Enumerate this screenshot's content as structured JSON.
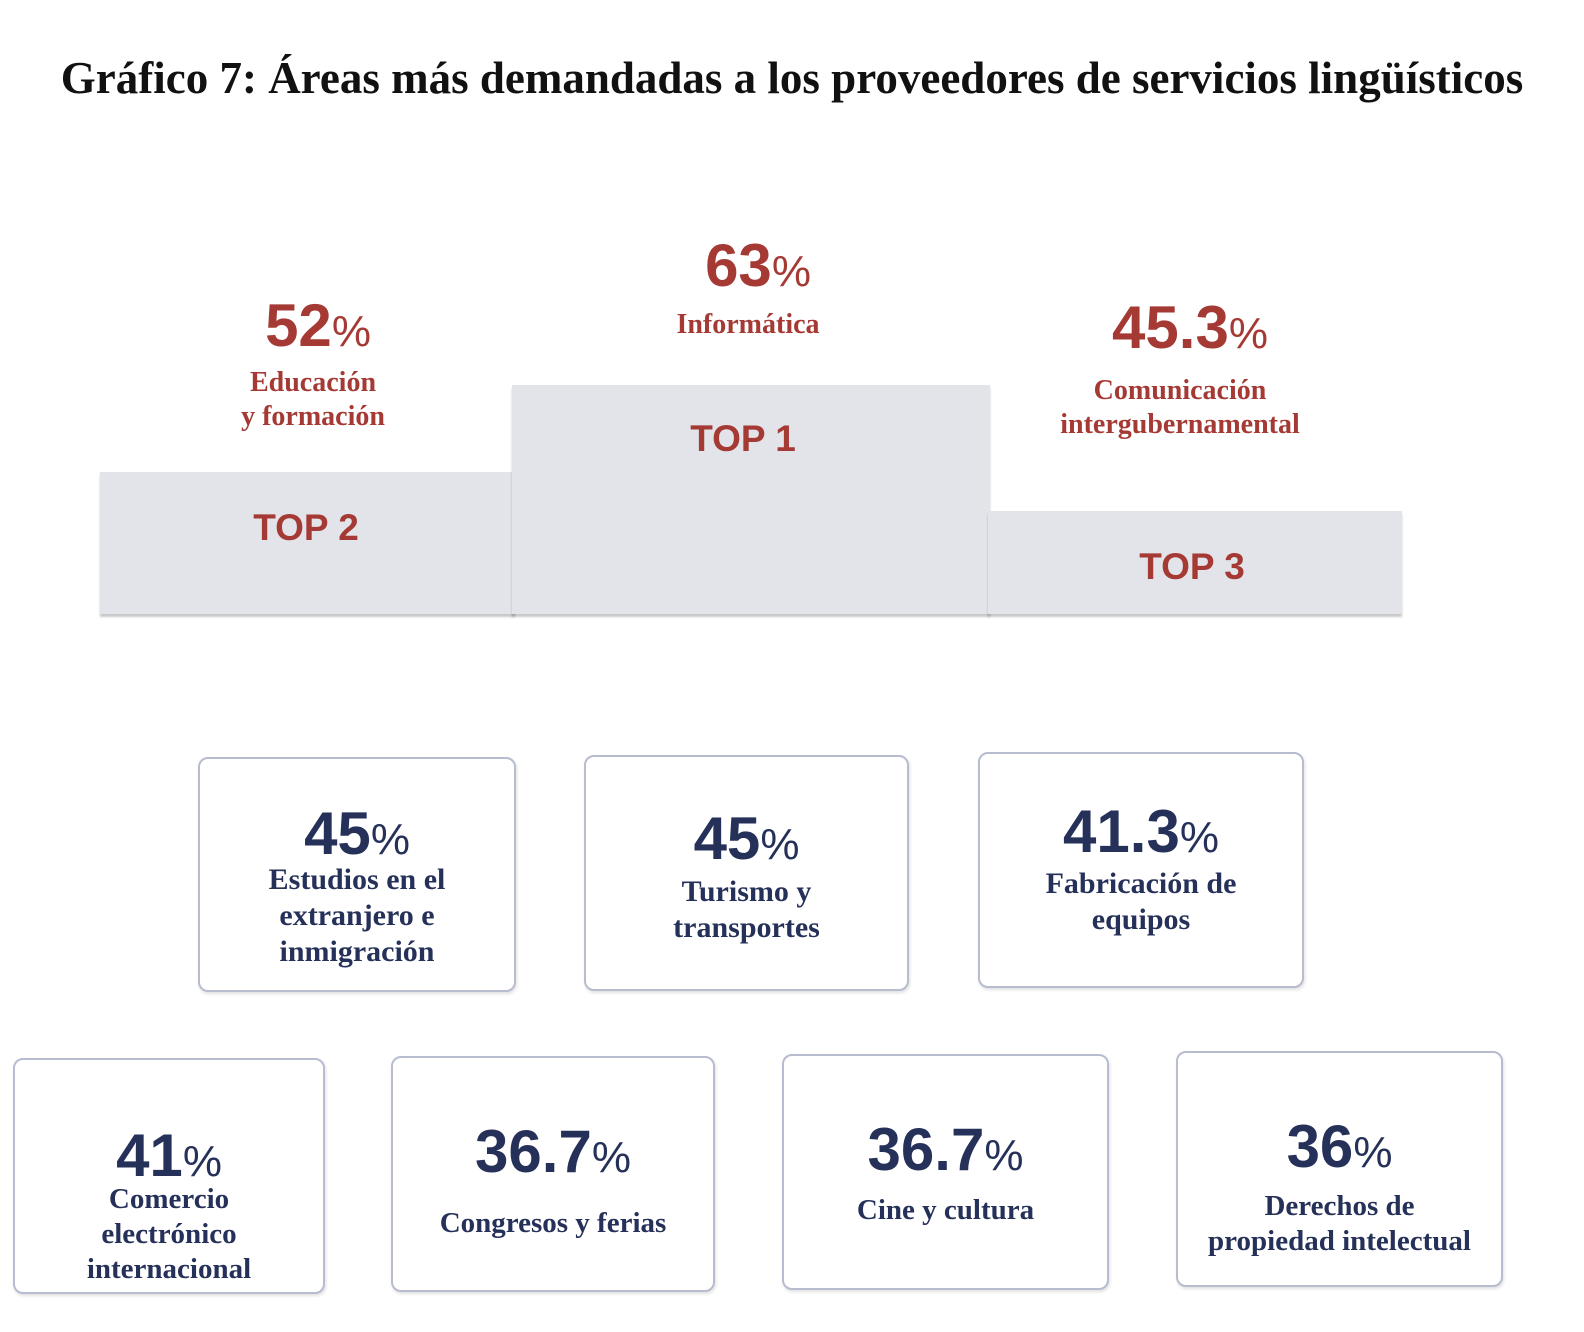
{
  "title": "Gráfico 7:  Áreas más demandadas a los proveedores de servicios lingüísticos",
  "colors": {
    "accent_red": "#a53a35",
    "navy": "#26315a",
    "podium": "#e3e4e9",
    "card_border": "#b7bcd0"
  },
  "chart_data": {
    "type": "table",
    "title": "Gráfico 7:  Áreas más demandadas a los proveedores de servicios lingüísticos",
    "podium": [
      {
        "rank_label": "TOP 1",
        "value": 63,
        "display": "63",
        "unit": "%",
        "category": "Informática"
      },
      {
        "rank_label": "TOP 2",
        "value": 52,
        "display": "52",
        "unit": "%",
        "category": "Educación y formación"
      },
      {
        "rank_label": "TOP 3",
        "value": 45.3,
        "display": "45.3",
        "unit": "%",
        "category": "Comunicación intergubernamental"
      }
    ],
    "others": [
      {
        "value": 45,
        "display": "45",
        "unit": "%",
        "category": "Estudios en el extranjero e inmigración"
      },
      {
        "value": 45,
        "display": "45",
        "unit": "%",
        "category": "Turismo y transportes"
      },
      {
        "value": 41.3,
        "display": "41.3",
        "unit": "%",
        "category": "Fabricación de equipos"
      },
      {
        "value": 41,
        "display": "41",
        "unit": "%",
        "category": "Comercio electrónico internacional"
      },
      {
        "value": 36.7,
        "display": "36.7",
        "unit": "%",
        "category": "Congresos y ferias"
      },
      {
        "value": 36.7,
        "display": "36.7",
        "unit": "%",
        "category": "Cine y cultura"
      },
      {
        "value": 36,
        "display": "36",
        "unit": "%",
        "category": "Derechos de propiedad intelectual"
      }
    ]
  }
}
